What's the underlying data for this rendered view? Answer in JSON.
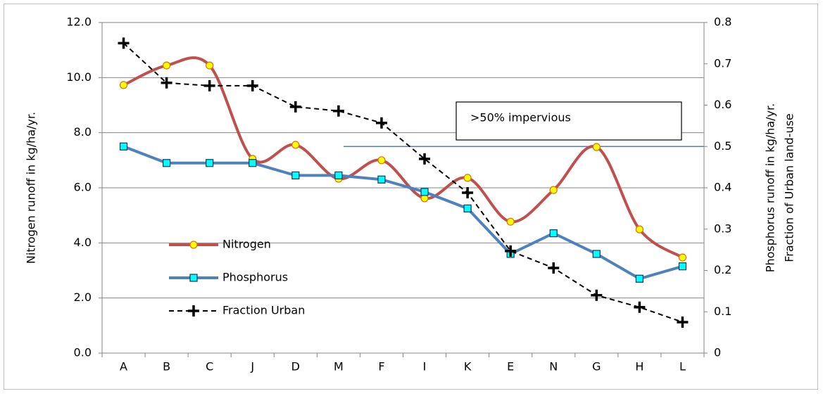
{
  "chart_data": {
    "type": "line",
    "categories": [
      "A",
      "B",
      "C",
      "J",
      "D",
      "M",
      "F",
      "I",
      "K",
      "E",
      "N",
      "G",
      "H",
      "L"
    ],
    "ylabel": "Nitrogen runoff in kg/ha/yr.",
    "y2label": [
      "Phosphorus runoff in kg/ha/yr.",
      "Fraction of Urban land-use"
    ],
    "ylim": [
      0,
      12
    ],
    "yticks": [
      {
        "value": 0,
        "label": "0.0"
      },
      {
        "value": 2,
        "label": "2.0"
      },
      {
        "value": 4,
        "label": "4.0"
      },
      {
        "value": 6,
        "label": "6.0"
      },
      {
        "value": 8,
        "label": "8.0"
      },
      {
        "value": 10,
        "label": "10.0"
      },
      {
        "value": 12,
        "label": "12.0"
      }
    ],
    "y2lim": [
      0,
      0.8
    ],
    "y2ticks": [
      0,
      0.1,
      0.2,
      0.3,
      0.4,
      0.5,
      0.6,
      0.7,
      0.8
    ],
    "grid": true,
    "series": [
      {
        "name": "Nitrogen",
        "color": "#c0504d",
        "marker": "circle",
        "marker_color": "#ffff00",
        "smooth": true,
        "line_style": "solid",
        "values": [
          9.73,
          10.44,
          10.44,
          7.05,
          7.56,
          6.33,
          7.0,
          5.62,
          6.36,
          4.77,
          5.92,
          7.48,
          4.49,
          3.47
        ]
      },
      {
        "name": "Phosphorus",
        "color": "#4f81bd",
        "marker": "square",
        "marker_color": "#00ffff",
        "smooth": false,
        "line_style": "solid",
        "axis": "y2",
        "values": [
          0.5,
          0.46,
          0.46,
          0.46,
          0.43,
          0.43,
          0.42,
          0.39,
          0.35,
          0.24,
          0.29,
          0.24,
          0.18,
          0.21
        ]
      },
      {
        "name": "Fraction Urban",
        "color": "#000000",
        "marker": "plus",
        "marker_color": "#000000",
        "smooth": false,
        "line_style": "dashed",
        "axis": "y2",
        "values": [
          0.75,
          0.654,
          0.647,
          0.647,
          0.596,
          0.586,
          0.557,
          0.47,
          0.388,
          0.247,
          0.206,
          0.14,
          0.111,
          0.075
        ]
      }
    ],
    "reference_line": {
      "value": 0.5,
      "axis": "y2",
      "color": "#4f81bd"
    },
    "annotation": ">50% impervious",
    "legend": "left-middle"
  }
}
